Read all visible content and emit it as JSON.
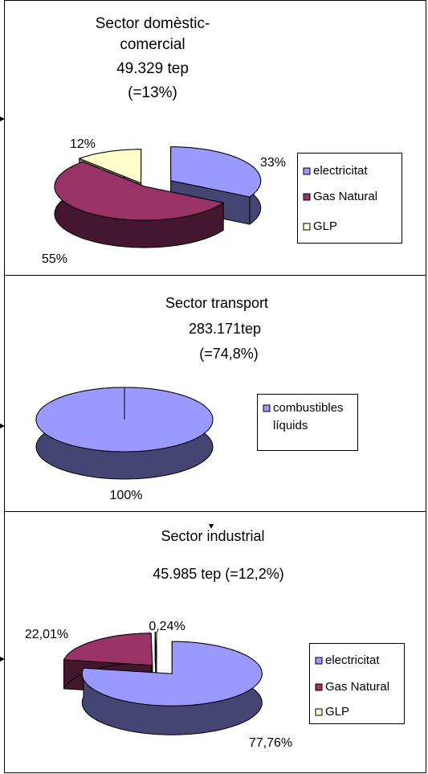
{
  "chart_data": [
    {
      "type": "pie",
      "title": [
        "Sector domèstic-",
        "comercial",
        "49.329 tep",
        "(=13%)"
      ],
      "categories": [
        "electricitat",
        "Gas Natural",
        "GLP"
      ],
      "values": [
        33,
        55,
        12
      ],
      "value_labels": [
        "33%",
        "55%",
        "12%"
      ],
      "colors": [
        "#9999ff",
        "#993366",
        "#ffffcc"
      ],
      "legend": "right"
    },
    {
      "type": "pie",
      "title": [
        "Sector transport",
        "283.171tep",
        "(=74,8%)"
      ],
      "categories": [
        "combustibles líquids"
      ],
      "values": [
        100
      ],
      "value_labels": [
        "100%"
      ],
      "colors": [
        "#9999ff"
      ],
      "legend": "right"
    },
    {
      "type": "pie",
      "title": [
        "Sector industrial",
        "45.985 tep (=12,2%)"
      ],
      "categories": [
        "electricitat",
        "Gas Natural",
        "GLP"
      ],
      "values": [
        77.76,
        22.01,
        0.24
      ],
      "value_labels": [
        "77,76%",
        "22,01%",
        "0,24%"
      ],
      "colors": [
        "#9999ff",
        "#993366",
        "#ffffcc"
      ],
      "legend": "right"
    }
  ]
}
